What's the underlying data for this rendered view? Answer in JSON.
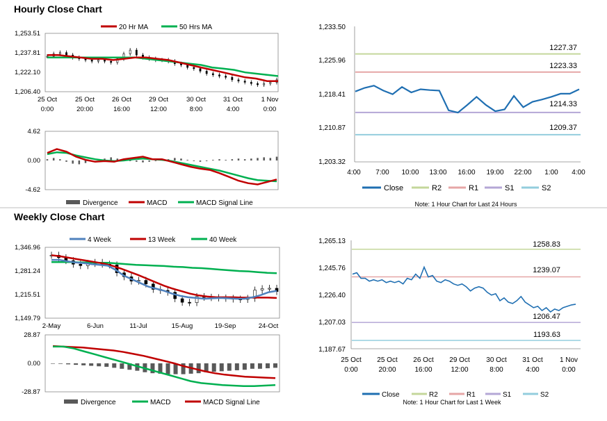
{
  "colors": {
    "ma20": "#c00000",
    "ma50": "#00b050",
    "wk4": "#4f81bd",
    "wk13": "#c00000",
    "wk40": "#00b050",
    "divergence": "#595959",
    "macd_red": "#c00000",
    "signal_green": "#00b050",
    "close": "#1f6fb2",
    "r2": "#c4d79b",
    "r1": "#e6a6a6",
    "s1": "#b4a7d6",
    "s2": "#93cddd"
  },
  "chart_data": [
    {
      "id": "hourly-candles",
      "type": "line",
      "title": "Hourly Close Chart",
      "yticks": [
        "1,253.51",
        "1,237.81",
        "1,222.10",
        "1,206.40"
      ],
      "ylim": [
        1206.4,
        1253.51
      ],
      "xticks": [
        [
          "25 Oct",
          "0:00"
        ],
        [
          "25 Oct",
          "20:00"
        ],
        [
          "26 Oct",
          "16:00"
        ],
        [
          "29 Oct",
          "12:00"
        ],
        [
          "30 Oct",
          "8:00"
        ],
        [
          "31 Oct",
          "4:00"
        ],
        [
          "1 Nov",
          "0:00"
        ]
      ],
      "legend": [
        "20 Hr MA",
        "50 Hrs MA"
      ],
      "price": [
        1235,
        1237,
        1238,
        1236,
        1234,
        1233,
        1232,
        1231,
        1232,
        1231,
        1230,
        1233,
        1237,
        1240,
        1236,
        1234,
        1233,
        1232,
        1232,
        1231,
        1229,
        1228,
        1226,
        1225,
        1223,
        1221,
        1220,
        1219,
        1218,
        1216,
        1215,
        1214,
        1213,
        1212,
        1213,
        1214,
        1216
      ],
      "series": [
        {
          "name": "20 Hr MA",
          "values": [
            1236,
            1236,
            1235,
            1234,
            1233,
            1233,
            1232,
            1233,
            1234,
            1234,
            1233,
            1232,
            1230,
            1228,
            1226,
            1224,
            1222,
            1220,
            1218,
            1217,
            1215,
            1215
          ]
        },
        {
          "name": "50 Hrs MA",
          "values": [
            1234,
            1234,
            1234,
            1234,
            1234,
            1234,
            1234,
            1234,
            1234,
            1233,
            1232,
            1231,
            1230,
            1229,
            1228,
            1226,
            1225,
            1224,
            1222,
            1221,
            1220,
            1219
          ]
        }
      ]
    },
    {
      "id": "hourly-macd",
      "type": "line",
      "yticks": [
        "4.62",
        "0.00",
        "-4.62"
      ],
      "ylim": [
        -4.62,
        4.62
      ],
      "legend": [
        "Divergence",
        "MACD",
        "MACD Signal Line"
      ],
      "divergence": [
        0.2,
        0.4,
        0.2,
        -0.2,
        -0.5,
        -0.6,
        -0.4,
        -0.2,
        0.1,
        0.3,
        0.5,
        0.3,
        0.1,
        -0.1,
        -0.2,
        -0.3,
        -0.2,
        -0.1,
        0.1,
        0.2,
        0.4,
        0.3,
        0.1,
        -0.1,
        -0.2,
        -0.1,
        0.1,
        0.2,
        0.1,
        0.2,
        0.3,
        0.2,
        0.3,
        0.4,
        0.5,
        0.4,
        0.6
      ],
      "series": [
        {
          "name": "MACD",
          "values": [
            1.2,
            1.8,
            1.4,
            0.6,
            0.1,
            -0.2,
            -0.1,
            -0.2,
            0.2,
            0.4,
            0.6,
            0.2,
            0.2,
            -0.2,
            -0.6,
            -1.0,
            -1.3,
            -1.5,
            -2.0,
            -2.6,
            -3.2,
            -3.6,
            -3.8,
            -3.4,
            -3.0
          ]
        },
        {
          "name": "MACD Signal Line",
          "values": [
            1.0,
            1.3,
            1.2,
            0.8,
            0.5,
            0.2,
            0.0,
            -0.1,
            0.0,
            0.2,
            0.3,
            0.2,
            0.1,
            -0.1,
            -0.4,
            -0.7,
            -1.0,
            -1.3,
            -1.6,
            -2.0,
            -2.4,
            -2.8,
            -3.1,
            -3.2,
            -3.3
          ]
        }
      ]
    },
    {
      "id": "hourly-levels",
      "type": "line",
      "yticks": [
        "1,233.50",
        "1,225.96",
        "1,218.41",
        "1,210.87",
        "1,203.32"
      ],
      "ylim": [
        1203.32,
        1233.5
      ],
      "xticks": [
        "4:00",
        "7:00",
        "10:00",
        "13:00",
        "16:00",
        "19:00",
        "22:00",
        "1:00",
        "4:00"
      ],
      "close": [
        1219.0,
        1219.8,
        1220.3,
        1219.2,
        1218.4,
        1220.0,
        1218.8,
        1219.5,
        1219.3,
        1219.2,
        1214.8,
        1214.3,
        1216.0,
        1217.8,
        1216.0,
        1214.6,
        1215.0,
        1218.0,
        1215.5,
        1216.7,
        1217.2,
        1217.8,
        1218.5,
        1218.5,
        1219.5
      ],
      "levels": {
        "R2": 1227.37,
        "R1": 1223.33,
        "S1": 1214.33,
        "S2": 1209.37
      },
      "level_labels": [
        "1227.37",
        "1223.33",
        "1214.33",
        "1209.37"
      ],
      "legend": [
        "Close",
        "R2",
        "R1",
        "S1",
        "S2"
      ],
      "note": "Note: 1 Hour Chart for Last 24 Hours"
    },
    {
      "id": "weekly-candles",
      "type": "line",
      "title": "Weekly Close Chart",
      "yticks": [
        "1,346.96",
        "1,281.24",
        "1,215.51",
        "1,149.79"
      ],
      "ylim": [
        1149.79,
        1346.96
      ],
      "xticks": [
        "2-May",
        "6-Jun",
        "11-Jul",
        "15-Aug",
        "19-Sep",
        "24-Oct"
      ],
      "legend": [
        "4 Week",
        "13 Week",
        "40 Week"
      ],
      "price": [
        1325,
        1318,
        1310,
        1300,
        1296,
        1302,
        1305,
        1300,
        1298,
        1276,
        1265,
        1253,
        1255,
        1245,
        1230,
        1227,
        1222,
        1204,
        1194,
        1193,
        1210,
        1208,
        1207,
        1206,
        1205,
        1203,
        1202,
        1205,
        1228,
        1232,
        1233,
        1224
      ],
      "series": [
        {
          "name": "4 Week",
          "values": [
            1312,
            1312,
            1308,
            1305,
            1303,
            1300,
            1298,
            1296,
            1284,
            1268,
            1258,
            1248,
            1238,
            1232,
            1226,
            1218,
            1212,
            1208,
            1206,
            1204,
            1205,
            1206,
            1205,
            1204,
            1204,
            1208,
            1214,
            1222,
            1226
          ]
        },
        {
          "name": "13 Week",
          "values": [
            1325,
            1322,
            1318,
            1314,
            1310,
            1306,
            1302,
            1296,
            1288,
            1279,
            1270,
            1260,
            1250,
            1240,
            1232,
            1225,
            1218,
            1213,
            1210,
            1208,
            1208,
            1208,
            1207,
            1207,
            1207,
            1207,
            1206
          ]
        },
        {
          "name": "40 Week",
          "values": [
            1306,
            1306,
            1306,
            1305,
            1305,
            1304,
            1304,
            1302,
            1300,
            1298,
            1297,
            1296,
            1295,
            1293,
            1292,
            1290,
            1289,
            1287,
            1285,
            1283,
            1281,
            1280,
            1278,
            1276,
            1275
          ]
        }
      ]
    },
    {
      "id": "weekly-macd",
      "type": "bar",
      "yticks": [
        "28.87",
        "0.00",
        "-28.87"
      ],
      "ylim": [
        -28.87,
        28.87
      ],
      "legend": [
        "Divergence",
        "MACD",
        "MACD Signal Line"
      ],
      "divergence": [
        0,
        -0.5,
        -1,
        -1.5,
        -2,
        -2.5,
        -3,
        -3.5,
        -4.5,
        -5.5,
        -6.5,
        -7.5,
        -9,
        -10,
        -10.5,
        -11,
        -11,
        -11,
        -10.5,
        -10,
        -9,
        -8.5,
        -8,
        -7.5,
        -7,
        -6.5,
        -5.5,
        -5.5,
        -5,
        -4.5
      ],
      "series": [
        {
          "name": "MACD",
          "values": [
            17,
            17,
            15,
            12,
            9,
            6,
            3,
            0,
            -3,
            -6,
            -9,
            -12,
            -15,
            -18,
            -20,
            -21,
            -22,
            -22.5,
            -23,
            -23,
            -22.5,
            -22
          ]
        },
        {
          "name": "MACD Signal Line",
          "values": [
            17.5,
            17,
            16.5,
            16,
            15,
            14,
            13,
            11.5,
            9.5,
            7.5,
            5,
            2.5,
            0,
            -3,
            -5.5,
            -8,
            -10,
            -11.5,
            -12.5,
            -13.5,
            -14,
            -14.5,
            -15
          ]
        }
      ]
    },
    {
      "id": "weekly-levels",
      "type": "line",
      "yticks": [
        "1,265.13",
        "1,245.76",
        "1,226.40",
        "1,207.03",
        "1,187.67"
      ],
      "ylim": [
        1187.67,
        1265.13
      ],
      "xticks": [
        [
          "25 Oct",
          "0:00"
        ],
        [
          "25 Oct",
          "20:00"
        ],
        [
          "26 Oct",
          "16:00"
        ],
        [
          "29 Oct",
          "12:00"
        ],
        [
          "30 Oct",
          "8:00"
        ],
        [
          "31 Oct",
          "4:00"
        ],
        [
          "1 Nov",
          "0:00"
        ]
      ],
      "close": [
        1241,
        1242,
        1238,
        1238,
        1236,
        1237,
        1236,
        1237,
        1235,
        1236,
        1235,
        1236,
        1234,
        1238,
        1237,
        1241,
        1238,
        1246,
        1239,
        1240,
        1236,
        1235,
        1237,
        1236,
        1234,
        1233,
        1234,
        1232,
        1229,
        1231,
        1232,
        1231,
        1228,
        1226,
        1227,
        1222,
        1224,
        1221,
        1220,
        1222,
        1225,
        1221,
        1219,
        1217,
        1218,
        1215,
        1217,
        1214,
        1216,
        1215,
        1217,
        1218,
        1219,
        1219.5
      ],
      "levels": {
        "R2": 1258.83,
        "R1": 1239.07,
        "S1": 1206.47,
        "S2": 1193.63
      },
      "level_labels": [
        "1258.83",
        "1239.07",
        "1206.47",
        "1193.63"
      ],
      "legend": [
        "Close",
        "R2",
        "R1",
        "S1",
        "S2"
      ],
      "note": "Note: 1 Hour Chart for Last 1 Week"
    }
  ]
}
